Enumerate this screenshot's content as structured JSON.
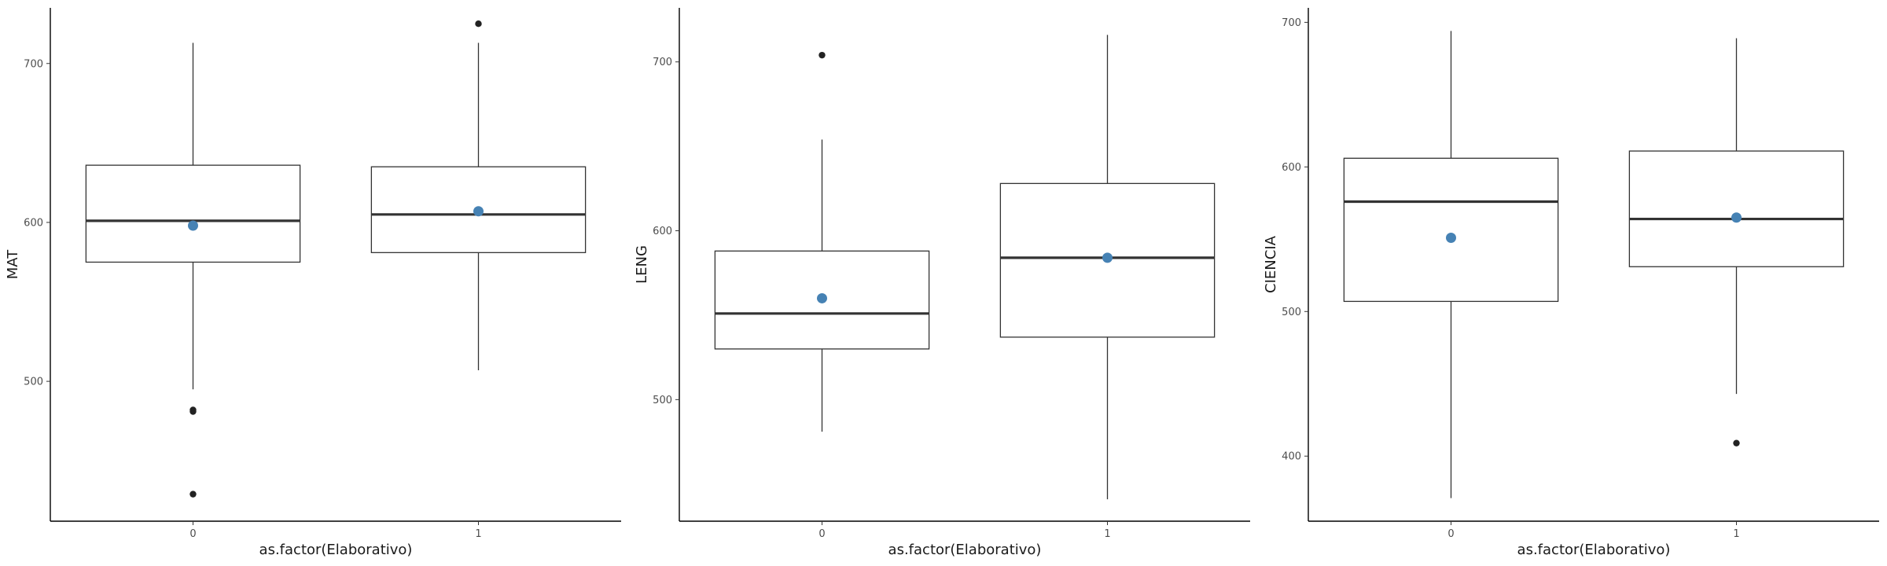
{
  "chart_data": [
    {
      "type": "boxplot",
      "xlabel": "as.factor(Elaborativo)",
      "ylabel": "MAT",
      "ylim": [
        412,
        735
      ],
      "yticks": [
        500,
        600,
        700
      ],
      "categories": [
        "0",
        "1"
      ],
      "colors": {
        "box": "#333333",
        "mean": "#4682b4",
        "outlier": "#222222"
      },
      "boxes": [
        {
          "category": "0",
          "whisker_low": 495,
          "q1": 575,
          "median": 601,
          "q3": 636,
          "whisker_high": 713,
          "mean": 598,
          "outliers": [
            481,
            482,
            429
          ]
        },
        {
          "category": "1",
          "whisker_low": 507,
          "q1": 581,
          "median": 605,
          "q3": 635,
          "whisker_high": 713,
          "mean": 607,
          "outliers": [
            725
          ]
        }
      ]
    },
    {
      "type": "boxplot",
      "xlabel": "as.factor(Elaborativo)",
      "ylabel": "LENG",
      "ylim": [
        428,
        732
      ],
      "yticks": [
        500,
        600,
        700
      ],
      "categories": [
        "0",
        "1"
      ],
      "colors": {
        "box": "#333333",
        "mean": "#4682b4",
        "outlier": "#222222"
      },
      "boxes": [
        {
          "category": "0",
          "whisker_low": 481,
          "q1": 530,
          "median": 551,
          "q3": 588,
          "whisker_high": 654,
          "mean": 560,
          "outliers": [
            704
          ]
        },
        {
          "category": "1",
          "whisker_low": 441,
          "q1": 537,
          "median": 584,
          "q3": 628,
          "whisker_high": 716,
          "mean": 584,
          "outliers": []
        }
      ]
    },
    {
      "type": "boxplot",
      "xlabel": "as.factor(Elaborativo)",
      "ylabel": "CIENCIA",
      "ylim": [
        355,
        710
      ],
      "yticks": [
        400,
        500,
        600,
        700
      ],
      "categories": [
        "0",
        "1"
      ],
      "colors": {
        "box": "#333333",
        "mean": "#4682b4",
        "outlier": "#222222"
      },
      "boxes": [
        {
          "category": "0",
          "whisker_low": 371,
          "q1": 507,
          "median": 576,
          "q3": 606,
          "whisker_high": 694,
          "mean": 551,
          "outliers": []
        },
        {
          "category": "1",
          "whisker_low": 443,
          "q1": 531,
          "median": 564,
          "q3": 611,
          "whisker_high": 689,
          "mean": 565,
          "outliers": [
            409
          ]
        }
      ]
    }
  ]
}
